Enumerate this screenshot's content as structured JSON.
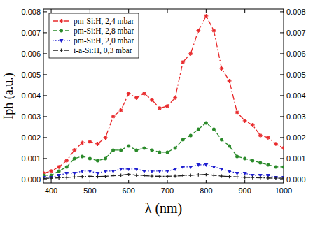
{
  "chart_data": {
    "type": "line",
    "xlabel": "λ (nm)",
    "ylabel": "Iph (a.u.)",
    "x": [
      380,
      400,
      420,
      440,
      460,
      480,
      500,
      520,
      540,
      560,
      580,
      600,
      620,
      640,
      660,
      680,
      700,
      720,
      740,
      760,
      780,
      800,
      820,
      840,
      860,
      880,
      900,
      920,
      940,
      960,
      980,
      1000
    ],
    "series": [
      {
        "name": "pm-Si:H, 2,4 mbar",
        "color": "#e8292b",
        "marker": "star",
        "line_style": "dashdot",
        "values": [
          0.0003,
          0.0004,
          0.0006,
          0.0009,
          0.0014,
          0.00175,
          0.0018,
          0.0017,
          0.002,
          0.003,
          0.0033,
          0.0041,
          0.0039,
          0.0041,
          0.0038,
          0.0034,
          0.0035,
          0.0039,
          0.0056,
          0.006,
          0.0071,
          0.0078,
          0.0071,
          0.0053,
          0.0047,
          0.0032,
          0.0028,
          0.0026,
          0.0021,
          0.002,
          0.0017,
          0.0015
        ]
      },
      {
        "name": "pm-Si:H, 2,8 mbar",
        "color": "#2a8a2a",
        "marker": "circle",
        "line_style": "dashed",
        "values": [
          0.0002,
          0.0002,
          0.0004,
          0.0006,
          0.001,
          0.0011,
          0.001,
          0.0009,
          0.001,
          0.0014,
          0.0014,
          0.0016,
          0.0014,
          0.0015,
          0.0014,
          0.0013,
          0.0013,
          0.0015,
          0.0019,
          0.0021,
          0.0024,
          0.0027,
          0.0024,
          0.0019,
          0.0016,
          0.0011,
          0.001,
          0.0009,
          0.0008,
          0.0007,
          0.0006,
          0.0006
        ]
      },
      {
        "name": "pm-Si:H, 2,0 mbar",
        "color": "#1f1fd0",
        "marker": "triangle-down",
        "line_style": "dotted",
        "values": [
          0.0001,
          0.0001,
          0.0002,
          0.0003,
          0.0003,
          0.0004,
          0.0004,
          0.0003,
          0.0004,
          0.0004,
          0.0005,
          0.0005,
          0.0005,
          0.0004,
          0.0004,
          0.0004,
          0.0004,
          0.0005,
          0.0006,
          0.0006,
          0.0007,
          0.0007,
          0.0006,
          0.0005,
          0.0004,
          0.0003,
          0.0003,
          0.0002,
          0.0002,
          0.0002,
          0.0001,
          0.0001
        ]
      },
      {
        "name": "i-a-Si:H, 0,3 mbar",
        "color": "#222222",
        "marker": "cross",
        "line_style": "dashdot",
        "values": [
          5e-05,
          6e-05,
          8e-05,
          0.0001,
          0.00012,
          0.00014,
          0.00015,
          0.00014,
          0.00015,
          0.00018,
          0.0002,
          0.00025,
          0.0002,
          0.00018,
          0.00016,
          0.00015,
          0.00015,
          0.00016,
          0.00018,
          0.0002,
          0.00022,
          0.00024,
          0.0002,
          0.00016,
          0.00014,
          0.00012,
          0.0001,
          9e-05,
          8e-05,
          7e-05,
          6e-05,
          6e-05
        ]
      }
    ],
    "xlim": [
      380,
      1000
    ],
    "xticks": [
      400,
      500,
      600,
      700,
      800,
      900,
      1000
    ],
    "ylim": [
      -0.00017,
      0.00813
    ],
    "yticks": [
      {
        "value": 0,
        "label": "0.000"
      },
      {
        "value": 0.001,
        "label": "0.001"
      },
      {
        "value": 0.002,
        "label": "0.002"
      },
      {
        "value": 0.003,
        "label": "0.003"
      },
      {
        "value": 0.004,
        "label": "0.004"
      },
      {
        "value": 0.005,
        "label": "0.005"
      },
      {
        "value": 0.006,
        "label": "0.006"
      },
      {
        "value": 0.007,
        "label": "0.007"
      },
      {
        "value": 0.008,
        "label": "0.008"
      }
    ],
    "y2lim": [
      -0.00017,
      0.00813
    ],
    "y2ticks": [
      {
        "value": 0,
        "label": "0.000"
      },
      {
        "value": 0.001,
        "label": "0.001"
      },
      {
        "value": 0.002,
        "label": "0.002"
      },
      {
        "value": 0.003,
        "label": "0.003"
      },
      {
        "value": 0.004,
        "label": "0.004"
      },
      {
        "value": 0.005,
        "label": "0.005"
      },
      {
        "value": 0.006,
        "label": "0.006"
      },
      {
        "value": 0.007,
        "label": "0.007"
      },
      {
        "value": 0.008,
        "label": "0.008"
      }
    ],
    "legend": "upper-left",
    "grid": false
  }
}
